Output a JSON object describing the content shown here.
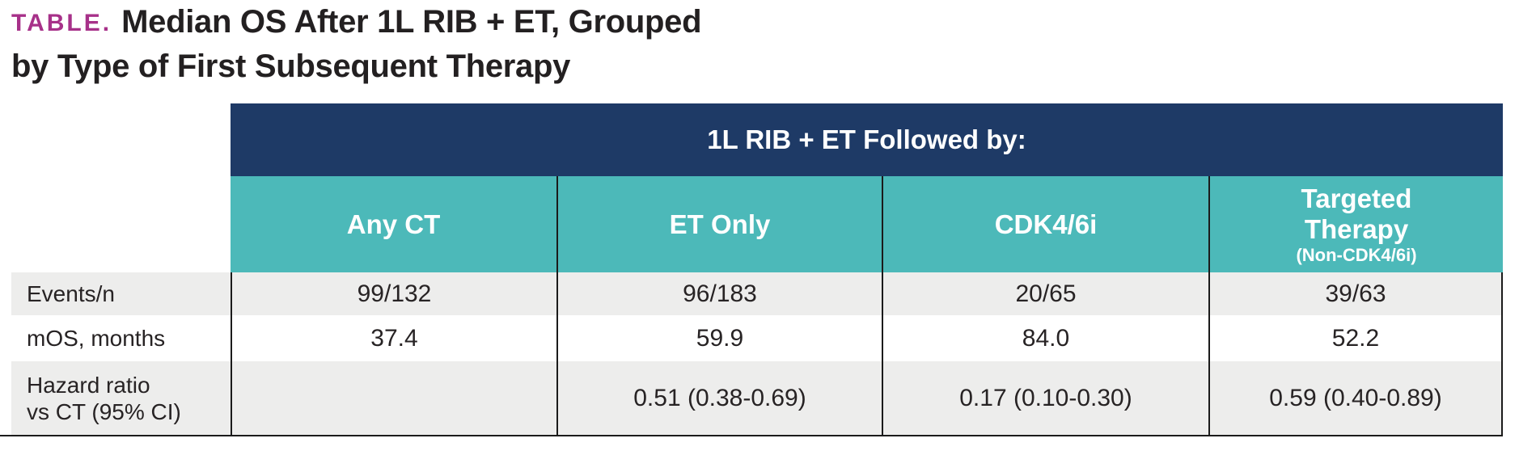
{
  "title": {
    "tag": "TABLE.",
    "line1": "Median OS After 1L RIB + ET, Grouped",
    "line2": "by Type of First Subsequent Therapy"
  },
  "table": {
    "group_header": "1L RIB + ET Followed by:",
    "columns": [
      {
        "label": "Any CT",
        "sublabel": ""
      },
      {
        "label": "ET Only",
        "sublabel": ""
      },
      {
        "label": "CDK4/6i",
        "sublabel": ""
      },
      {
        "label": "Targeted Therapy",
        "sublabel": "(Non-CDK4/6i)"
      }
    ],
    "rows": [
      {
        "label": "Events/n",
        "label2": "",
        "values": [
          "99/132",
          "96/183",
          "20/65",
          "39/63"
        ]
      },
      {
        "label": "mOS, months",
        "label2": "",
        "values": [
          "37.4",
          "59.9",
          "84.0",
          "52.2"
        ]
      },
      {
        "label": "Hazard ratio",
        "label2": "vs CT (95% CI)",
        "values": [
          "",
          "0.51 (0.38-0.69)",
          "0.17 (0.10-0.30)",
          "0.59 (0.40-0.89)"
        ]
      }
    ]
  },
  "colors": {
    "navy": "#1e3a66",
    "teal": "#4cb9b9",
    "gray": "#ededec",
    "magenta": "#a73189",
    "border": "#1b1b1b",
    "text": "#272324",
    "white_text": "#ffffff",
    "bg": "#ffffff"
  },
  "chart_data": {
    "type": "table",
    "title": "Median OS After 1L RIB + ET, Grouped by Type of First Subsequent Therapy",
    "column_group": "1L RIB + ET Followed by:",
    "categories": [
      "Any CT",
      "ET Only",
      "CDK4/6i",
      "Targeted Therapy (Non-CDK4/6i)"
    ],
    "series": [
      {
        "name": "Events/n",
        "values": [
          "99/132",
          "96/183",
          "20/65",
          "39/63"
        ]
      },
      {
        "name": "mOS, months",
        "values": [
          37.4,
          59.9,
          84.0,
          52.2
        ]
      },
      {
        "name": "Hazard ratio vs CT (95% CI)",
        "values": [
          null,
          "0.51 (0.38-0.69)",
          "0.17 (0.10-0.30)",
          "0.59 (0.40-0.89)"
        ]
      }
    ]
  }
}
